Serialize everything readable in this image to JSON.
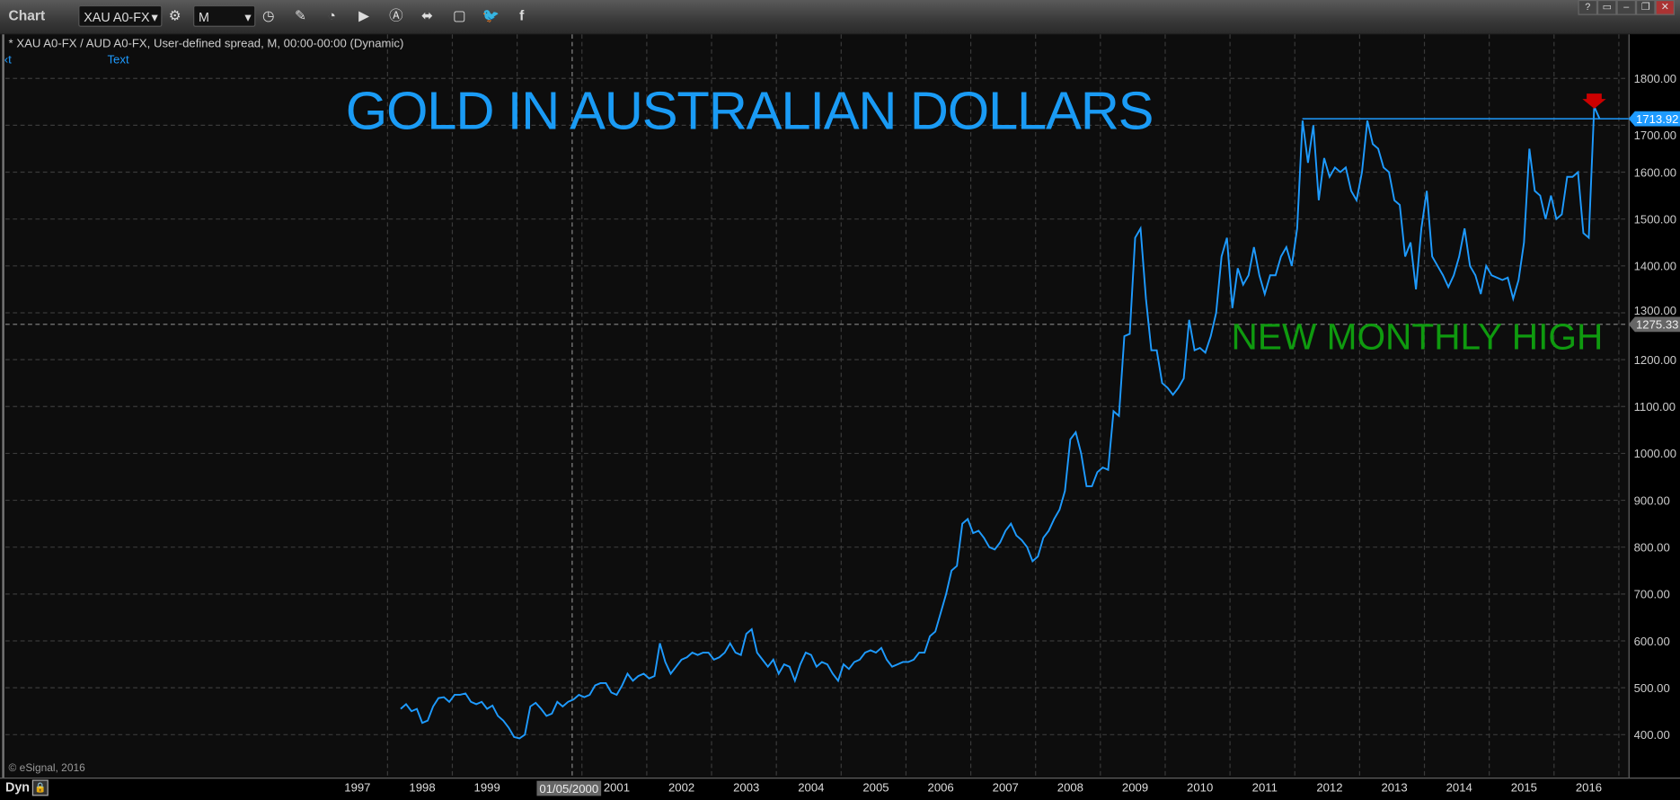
{
  "toolbar": {
    "title": "Chart",
    "symbol": "XAU A0-FX",
    "interval": "M",
    "icons": [
      "settings-icon",
      "clock-icon",
      "pencil-icon",
      "study-icon",
      "play-icon",
      "alert-icon",
      "link-icon",
      "comment-icon",
      "twitter-icon",
      "facebook-icon"
    ],
    "window_buttons": [
      "?",
      "▭",
      "–",
      "❐",
      "✕"
    ]
  },
  "info_line": "* XAU A0-FX / AUD A0-FX, User-defined spread, M, 00:00-00:00 (Dynamic)",
  "text_label": "Text",
  "left_mark": "‹t",
  "copyright": "© eSignal, 2016",
  "bottom": {
    "dyn": "Dyn",
    "crosshair_date": "01/05/2000"
  },
  "colors": {
    "line": "#1e9bff",
    "title": "#1a9bf5",
    "annotation": "#0f9a0f",
    "marker": "#cc0000",
    "grid": "#3a3a3a"
  },
  "chart_data": {
    "type": "line",
    "title": "GOLD IN AUSTRALIAN DOLLARS",
    "annotations": [
      "NEW MONTHLY HIGH"
    ],
    "ylim": [
      300,
      1900
    ],
    "yticks": [
      400,
      500,
      600,
      700,
      800,
      900,
      1000,
      1100,
      1200,
      1300,
      1400,
      1500,
      1600,
      1700,
      1800
    ],
    "xticks": [
      "1997",
      "1998",
      "1999",
      "2000",
      "2001",
      "2002",
      "2003",
      "2004",
      "2005",
      "2006",
      "2007",
      "2008",
      "2009",
      "2010",
      "2011",
      "2012",
      "2013",
      "2014",
      "2015",
      "2016"
    ],
    "grid": true,
    "last_price": 1713.92,
    "crosshair_price": 1275.33,
    "resistance_level": 1713.92,
    "points": [
      [
        "1997-09",
        455
      ],
      [
        "1997-10",
        465
      ],
      [
        "1997-11",
        450
      ],
      [
        "1997-12",
        455
      ],
      [
        "1998-01",
        425
      ],
      [
        "1998-02",
        430
      ],
      [
        "1998-03",
        460
      ],
      [
        "1998-04",
        478
      ],
      [
        "1998-05",
        480
      ],
      [
        "1998-06",
        470
      ],
      [
        "1998-07",
        485
      ],
      [
        "1998-08",
        485
      ],
      [
        "1998-09",
        488
      ],
      [
        "1998-10",
        470
      ],
      [
        "1998-11",
        465
      ],
      [
        "1998-12",
        470
      ],
      [
        "1999-01",
        455
      ],
      [
        "1999-02",
        462
      ],
      [
        "1999-03",
        440
      ],
      [
        "1999-04",
        430
      ],
      [
        "1999-05",
        415
      ],
      [
        "1999-06",
        395
      ],
      [
        "1999-07",
        392
      ],
      [
        "1999-08",
        400
      ],
      [
        "1999-09",
        460
      ],
      [
        "1999-10",
        468
      ],
      [
        "1999-11",
        455
      ],
      [
        "1999-12",
        440
      ],
      [
        "2000-01",
        445
      ],
      [
        "2000-02",
        470
      ],
      [
        "2000-03",
        460
      ],
      [
        "2000-04",
        470
      ],
      [
        "2000-05",
        475
      ],
      [
        "2000-06",
        485
      ],
      [
        "2000-07",
        480
      ],
      [
        "2000-08",
        485
      ],
      [
        "2000-09",
        505
      ],
      [
        "2000-10",
        510
      ],
      [
        "2000-11",
        510
      ],
      [
        "2000-12",
        490
      ],
      [
        "2001-01",
        485
      ],
      [
        "2001-02",
        505
      ],
      [
        "2001-03",
        530
      ],
      [
        "2001-04",
        515
      ],
      [
        "2001-05",
        525
      ],
      [
        "2001-06",
        530
      ],
      [
        "2001-07",
        520
      ],
      [
        "2001-08",
        525
      ],
      [
        "2001-09",
        595
      ],
      [
        "2001-10",
        555
      ],
      [
        "2001-11",
        530
      ],
      [
        "2001-12",
        545
      ],
      [
        "2002-01",
        560
      ],
      [
        "2002-02",
        565
      ],
      [
        "2002-03",
        575
      ],
      [
        "2002-04",
        570
      ],
      [
        "2002-05",
        575
      ],
      [
        "2002-06",
        575
      ],
      [
        "2002-07",
        560
      ],
      [
        "2002-08",
        565
      ],
      [
        "2002-09",
        575
      ],
      [
        "2002-10",
        595
      ],
      [
        "2002-11",
        575
      ],
      [
        "2002-12",
        570
      ],
      [
        "2003-01",
        615
      ],
      [
        "2003-02",
        625
      ],
      [
        "2003-03",
        575
      ],
      [
        "2003-04",
        560
      ],
      [
        "2003-05",
        545
      ],
      [
        "2003-06",
        560
      ],
      [
        "2003-07",
        530
      ],
      [
        "2003-08",
        550
      ],
      [
        "2003-09",
        545
      ],
      [
        "2003-10",
        515
      ],
      [
        "2003-11",
        550
      ],
      [
        "2003-12",
        575
      ],
      [
        "2004-01",
        570
      ],
      [
        "2004-02",
        545
      ],
      [
        "2004-03",
        555
      ],
      [
        "2004-04",
        550
      ],
      [
        "2004-05",
        530
      ],
      [
        "2004-06",
        515
      ],
      [
        "2004-07",
        550
      ],
      [
        "2004-08",
        540
      ],
      [
        "2004-09",
        555
      ],
      [
        "2004-10",
        560
      ],
      [
        "2004-11",
        575
      ],
      [
        "2004-12",
        580
      ],
      [
        "2005-01",
        575
      ],
      [
        "2005-02",
        585
      ],
      [
        "2005-03",
        560
      ],
      [
        "2005-04",
        545
      ],
      [
        "2005-05",
        550
      ],
      [
        "2005-06",
        555
      ],
      [
        "2005-07",
        555
      ],
      [
        "2005-08",
        560
      ],
      [
        "2005-09",
        575
      ],
      [
        "2005-10",
        575
      ],
      [
        "2005-11",
        610
      ],
      [
        "2005-12",
        620
      ],
      [
        "2006-01",
        660
      ],
      [
        "2006-02",
        700
      ],
      [
        "2006-03",
        750
      ],
      [
        "2006-04",
        760
      ],
      [
        "2006-05",
        850
      ],
      [
        "2006-06",
        860
      ],
      [
        "2006-07",
        830
      ],
      [
        "2006-08",
        835
      ],
      [
        "2006-09",
        820
      ],
      [
        "2006-10",
        800
      ],
      [
        "2006-11",
        795
      ],
      [
        "2006-12",
        810
      ],
      [
        "2007-01",
        835
      ],
      [
        "2007-02",
        850
      ],
      [
        "2007-03",
        825
      ],
      [
        "2007-04",
        815
      ],
      [
        "2007-05",
        800
      ],
      [
        "2007-06",
        770
      ],
      [
        "2007-07",
        780
      ],
      [
        "2007-08",
        820
      ],
      [
        "2007-09",
        835
      ],
      [
        "2007-10",
        860
      ],
      [
        "2007-11",
        880
      ],
      [
        "2007-12",
        920
      ],
      [
        "2008-01",
        1030
      ],
      [
        "2008-02",
        1045
      ],
      [
        "2008-03",
        1000
      ],
      [
        "2008-04",
        930
      ],
      [
        "2008-05",
        930
      ],
      [
        "2008-06",
        960
      ],
      [
        "2008-07",
        970
      ],
      [
        "2008-08",
        965
      ],
      [
        "2008-09",
        1090
      ],
      [
        "2008-10",
        1080
      ],
      [
        "2008-11",
        1250
      ],
      [
        "2008-12",
        1255
      ],
      [
        "2009-01",
        1460
      ],
      [
        "2009-02",
        1480
      ],
      [
        "2009-03",
        1330
      ],
      [
        "2009-04",
        1220
      ],
      [
        "2009-05",
        1220
      ],
      [
        "2009-06",
        1150
      ],
      [
        "2009-07",
        1140
      ],
      [
        "2009-08",
        1125
      ],
      [
        "2009-09",
        1140
      ],
      [
        "2009-10",
        1160
      ],
      [
        "2009-11",
        1285
      ],
      [
        "2009-12",
        1220
      ],
      [
        "2010-01",
        1225
      ],
      [
        "2010-02",
        1215
      ],
      [
        "2010-03",
        1250
      ],
      [
        "2010-04",
        1300
      ],
      [
        "2010-05",
        1420
      ],
      [
        "2010-06",
        1460
      ],
      [
        "2010-07",
        1310
      ],
      [
        "2010-08",
        1395
      ],
      [
        "2010-09",
        1360
      ],
      [
        "2010-10",
        1380
      ],
      [
        "2010-11",
        1440
      ],
      [
        "2010-12",
        1380
      ],
      [
        "2011-01",
        1340
      ],
      [
        "2011-02",
        1380
      ],
      [
        "2011-03",
        1380
      ],
      [
        "2011-04",
        1420
      ],
      [
        "2011-05",
        1440
      ],
      [
        "2011-06",
        1400
      ],
      [
        "2011-07",
        1480
      ],
      [
        "2011-08",
        1710
      ],
      [
        "2011-09",
        1620
      ],
      [
        "2011-10",
        1700
      ],
      [
        "2011-11",
        1540
      ],
      [
        "2011-12",
        1630
      ],
      [
        "2012-01",
        1590
      ],
      [
        "2012-02",
        1610
      ],
      [
        "2012-03",
        1600
      ],
      [
        "2012-04",
        1610
      ],
      [
        "2012-05",
        1560
      ],
      [
        "2012-06",
        1540
      ],
      [
        "2012-07",
        1600
      ],
      [
        "2012-08",
        1710
      ],
      [
        "2012-09",
        1660
      ],
      [
        "2012-10",
        1650
      ],
      [
        "2012-11",
        1610
      ],
      [
        "2012-12",
        1600
      ],
      [
        "2013-01",
        1540
      ],
      [
        "2013-02",
        1530
      ],
      [
        "2013-03",
        1420
      ],
      [
        "2013-04",
        1450
      ],
      [
        "2013-05",
        1350
      ],
      [
        "2013-06",
        1480
      ],
      [
        "2013-07",
        1560
      ],
      [
        "2013-08",
        1420
      ],
      [
        "2013-09",
        1400
      ],
      [
        "2013-10",
        1380
      ],
      [
        "2013-11",
        1355
      ],
      [
        "2013-12",
        1380
      ],
      [
        "2014-01",
        1420
      ],
      [
        "2014-02",
        1480
      ],
      [
        "2014-03",
        1400
      ],
      [
        "2014-04",
        1380
      ],
      [
        "2014-05",
        1340
      ],
      [
        "2014-06",
        1400
      ],
      [
        "2014-07",
        1380
      ],
      [
        "2014-08",
        1375
      ],
      [
        "2014-09",
        1370
      ],
      [
        "2014-10",
        1375
      ],
      [
        "2014-11",
        1330
      ],
      [
        "2014-12",
        1370
      ],
      [
        "2015-01",
        1450
      ],
      [
        "2015-02",
        1650
      ],
      [
        "2015-03",
        1560
      ],
      [
        "2015-04",
        1550
      ],
      [
        "2015-05",
        1500
      ],
      [
        "2015-06",
        1550
      ],
      [
        "2015-07",
        1500
      ],
      [
        "2015-08",
        1510
      ],
      [
        "2015-09",
        1590
      ],
      [
        "2015-10",
        1590
      ],
      [
        "2015-11",
        1600
      ],
      [
        "2015-12",
        1470
      ],
      [
        "2016-01",
        1460
      ],
      [
        "2016-02",
        1740
      ],
      [
        "2016-03",
        1713.92
      ]
    ]
  }
}
